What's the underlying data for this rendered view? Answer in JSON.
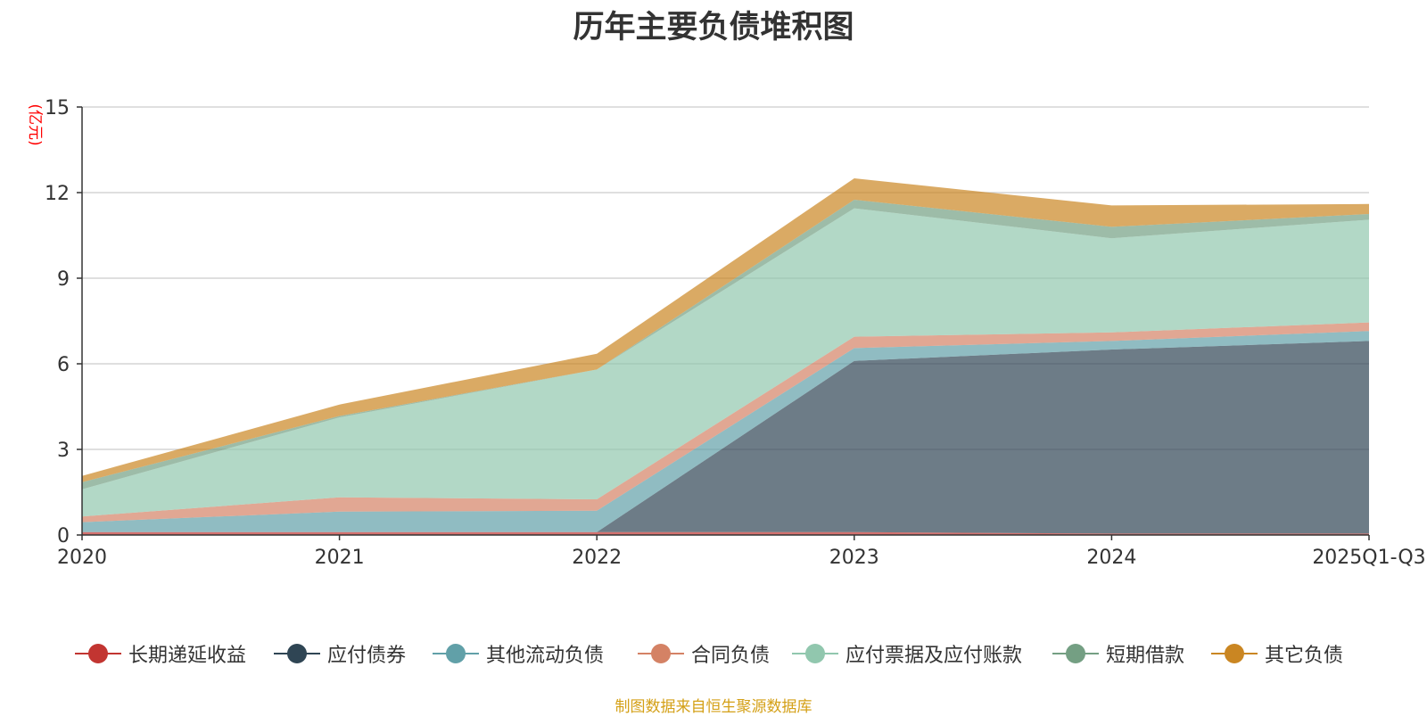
{
  "chart_data": {
    "type": "area",
    "stacked": true,
    "title": "历年主要负债堆积图",
    "ylabel": "(亿元)",
    "xlabel": "",
    "categories": [
      "2020",
      "2021",
      "2022",
      "2023",
      "2024",
      "2025Q1-Q3"
    ],
    "ylim": [
      0,
      15
    ],
    "yticks": [
      0,
      3,
      6,
      9,
      12,
      15
    ],
    "grid": true,
    "legend_position": "bottom",
    "series": [
      {
        "name": "长期递延收益",
        "color": "#c23531",
        "values": [
          0.1,
          0.1,
          0.1,
          0.1,
          0.05,
          0.05
        ]
      },
      {
        "name": "应付债券",
        "color": "#2f4554",
        "values": [
          0,
          0,
          0,
          6.0,
          6.45,
          6.75
        ]
      },
      {
        "name": "其他流动负债",
        "color": "#61a0a8",
        "values": [
          0.35,
          0.72,
          0.75,
          0.45,
          0.3,
          0.35
        ]
      },
      {
        "name": "合同负债",
        "color": "#d48265",
        "values": [
          0.2,
          0.5,
          0.4,
          0.4,
          0.3,
          0.3
        ]
      },
      {
        "name": "应付票据及应付账款",
        "color": "#91c7ae",
        "values": [
          0.95,
          2.8,
          4.55,
          4.5,
          3.3,
          3.6
        ]
      },
      {
        "name": "短期借款",
        "color": "#749f83",
        "values": [
          0.25,
          0.05,
          0,
          0.3,
          0.4,
          0.2
        ]
      },
      {
        "name": "其它负债",
        "color": "#ca8622",
        "values": [
          0.22,
          0.4,
          0.55,
          0.75,
          0.75,
          0.35
        ]
      }
    ]
  },
  "source_note": "制图数据来自恒生聚源数据库"
}
